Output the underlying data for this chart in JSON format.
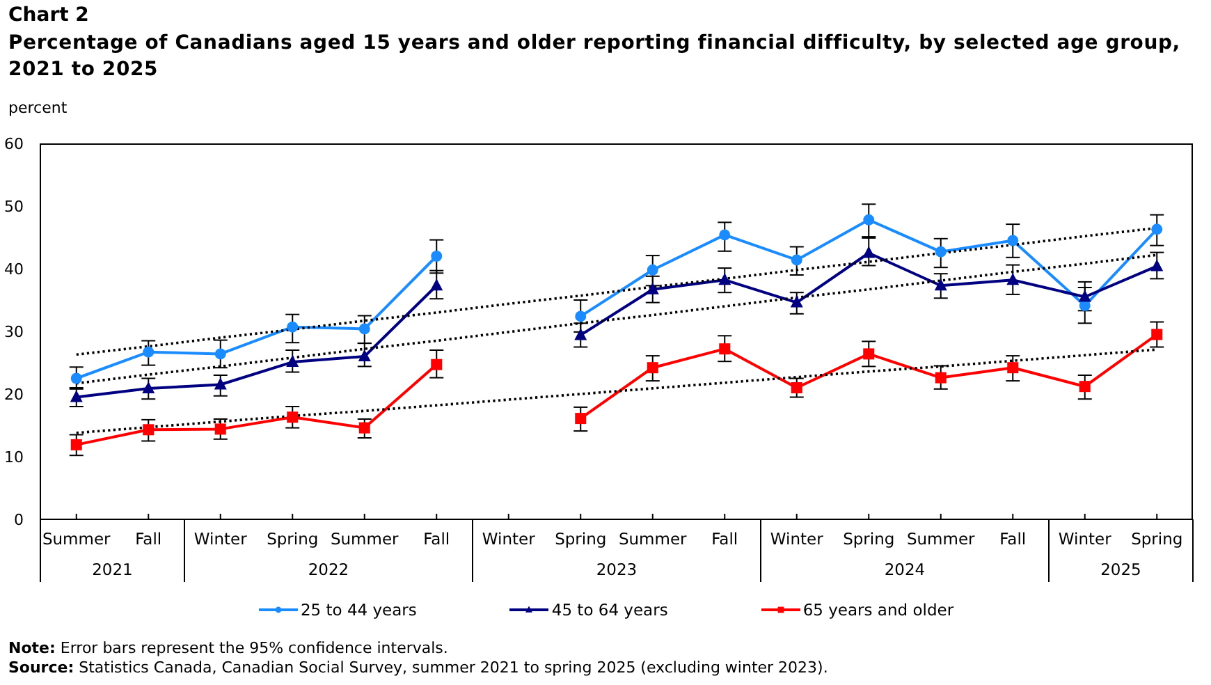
{
  "chart_data": {
    "type": "line",
    "title": "Chart 2",
    "subtitle": "Percentage of Canadians aged 15 years and older reporting financial difficulty, by selected age group, 2021 to 2025",
    "ylabel": "percent",
    "categories": [
      "Summer",
      "Fall",
      "Winter",
      "Spring",
      "Summer",
      "Fall",
      "Winter",
      "Spring",
      "Summer",
      "Fall",
      "Winter",
      "Spring",
      "Summer",
      "Fall",
      "Winter",
      "Spring"
    ],
    "series": [
      {
        "name": "25 to 44 years",
        "color": "#1a8cff",
        "marker": "circle",
        "values": [
          22.5,
          26.7,
          26.4,
          30.7,
          30.4,
          42.0,
          null,
          32.4,
          39.8,
          45.4,
          41.4,
          47.8,
          42.7,
          44.5,
          34.1,
          46.3
        ],
        "errors": [
          [
            20.8,
            24.3
          ],
          [
            24.6,
            28.5
          ],
          [
            24.2,
            28.6
          ],
          [
            28.2,
            32.7
          ],
          [
            28.1,
            32.5
          ],
          [
            39.3,
            44.6
          ],
          null,
          [
            29.9,
            35.0
          ],
          [
            37.3,
            42.1
          ],
          [
            42.8,
            47.4
          ],
          [
            39.0,
            43.5
          ],
          [
            45.1,
            50.3
          ],
          [
            40.2,
            44.8
          ],
          [
            41.8,
            47.1
          ],
          [
            31.3,
            37.0
          ],
          [
            43.7,
            48.6
          ]
        ]
      },
      {
        "name": "45 to 64 years",
        "color": "#000080",
        "marker": "triangle",
        "values": [
          19.5,
          20.9,
          21.5,
          25.1,
          26.0,
          37.3,
          null,
          29.4,
          36.7,
          38.2,
          34.6,
          42.5,
          37.3,
          38.2,
          35.5,
          40.4
        ],
        "errors": [
          [
            18.0,
            21.0
          ],
          [
            19.2,
            22.5
          ],
          [
            19.7,
            23.0
          ],
          [
            23.5,
            27.0
          ],
          [
            24.4,
            28.1
          ],
          [
            35.2,
            39.7
          ],
          null,
          [
            27.5,
            31.3
          ],
          [
            34.6,
            38.8
          ],
          [
            36.2,
            40.1
          ],
          [
            32.8,
            36.2
          ],
          [
            40.5,
            44.9
          ],
          [
            35.3,
            39.2
          ],
          [
            35.9,
            40.6
          ],
          [
            33.3,
            37.9
          ],
          [
            38.4,
            42.6
          ]
        ]
      },
      {
        "name": "65 years and older",
        "color": "#ff0000",
        "marker": "square",
        "values": [
          11.9,
          14.3,
          14.4,
          16.3,
          14.6,
          24.7,
          null,
          16.1,
          24.2,
          27.2,
          21.0,
          26.4,
          22.6,
          24.2,
          21.2,
          29.5
        ],
        "errors": [
          [
            10.2,
            13.5
          ],
          [
            12.5,
            15.9
          ],
          [
            12.8,
            16.0
          ],
          [
            14.6,
            18.0
          ],
          [
            13.0,
            16.0
          ],
          [
            22.6,
            27.0
          ],
          null,
          [
            14.1,
            17.9
          ],
          [
            22.1,
            26.1
          ],
          [
            25.2,
            29.3
          ],
          [
            19.5,
            22.5
          ],
          [
            24.4,
            28.4
          ],
          [
            20.8,
            24.5
          ],
          [
            22.1,
            26.1
          ],
          [
            19.2,
            23.0
          ],
          [
            27.5,
            31.5
          ]
        ]
      },
      {
        "type": "line",
        "color": "#000000",
        "line_style": "dotted",
        "marker": "none",
        "values": [
          26.3,
          27.6,
          29.0,
          30.3,
          31.7,
          33.0,
          34.4,
          35.7,
          37.1,
          38.4,
          39.8,
          41.1,
          42.5,
          43.8,
          45.2,
          46.5
        ]
      },
      {
        "type": "line",
        "color": "#000000",
        "line_style": "dotted",
        "marker": "none",
        "values": [
          21.7,
          23.1,
          24.4,
          25.8,
          27.2,
          28.5,
          29.9,
          31.3,
          32.6,
          34.0,
          35.4,
          36.7,
          38.1,
          39.5,
          40.8,
          42.2
        ]
      },
      {
        "type": "line",
        "color": "#000000",
        "line_style": "dotted",
        "marker": "none",
        "values": [
          13.8,
          14.7,
          15.6,
          16.5,
          17.3,
          18.2,
          19.1,
          20.0,
          20.9,
          21.8,
          22.7,
          23.6,
          24.4,
          25.3,
          26.2,
          27.1
        ]
      }
    ],
    "ylim": [
      0,
      60
    ],
    "yticks": [
      0,
      10,
      20,
      30,
      40,
      50,
      60
    ],
    "legend": "bottom",
    "line_style": "solid",
    "annotations": [
      "2021",
      "2022",
      "2023",
      "2024",
      "2025",
      "Note: Error bars represent the 95% confidence intervals.",
      "Source: Statistics Canada, Canadian Social Survey, summer 2021 to spring 2025 (excluding winter 2023)."
    ]
  }
}
